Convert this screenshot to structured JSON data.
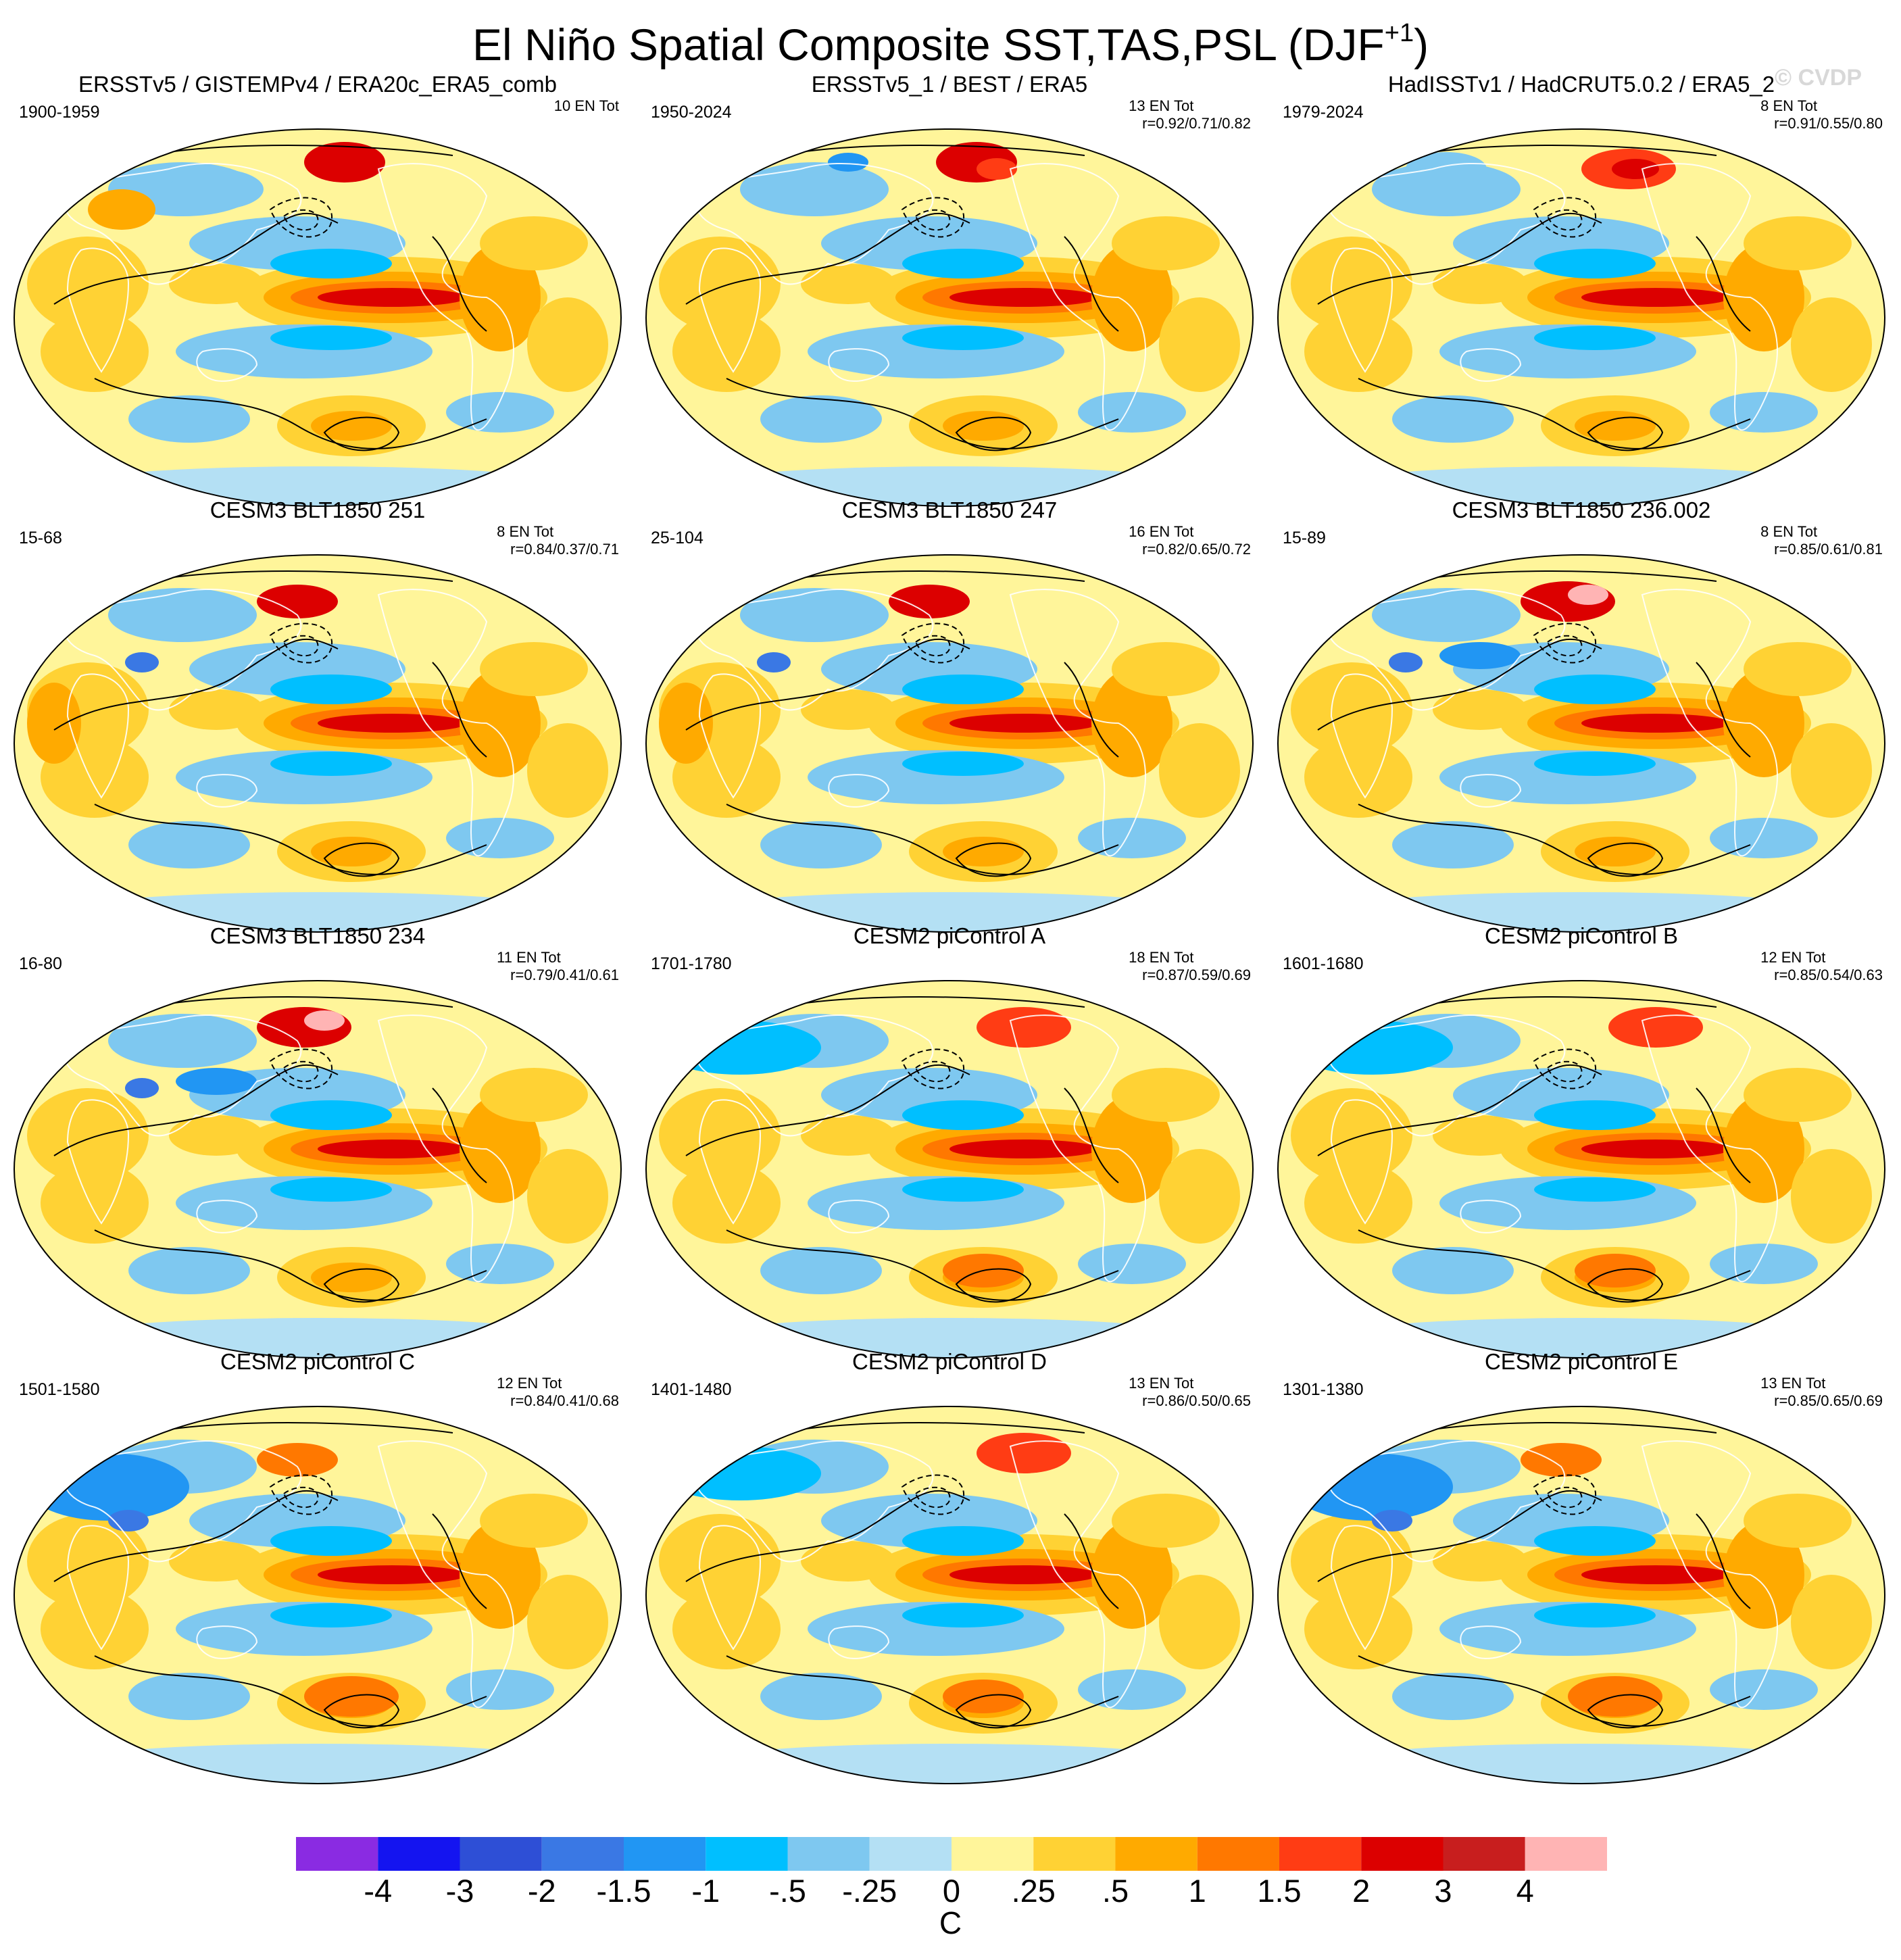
{
  "page": {
    "title_main": "El Niño Spatial Composite SST,TAS,PSL (DJF",
    "title_sup": "+1",
    "title_close": ")",
    "copyright": "© CVDP"
  },
  "chart_data": {
    "type": "heatmap",
    "description_type": "composite-map-grid",
    "units": "C",
    "colorbar": {
      "ticks": [
        "-4",
        "-3",
        "-2",
        "-1.5",
        "-1",
        "-.5",
        "-.25",
        "0",
        ".25",
        ".5",
        "1",
        "1.5",
        "2",
        "3",
        "4"
      ],
      "colors": [
        "#8a2be2",
        "#1414f0",
        "#2e4fd6",
        "#3a78e4",
        "#2196f3",
        "#00bfff",
        "#7ec8f0",
        "#b4e0f4",
        "#fff59a",
        "#ffd234",
        "#ffaa00",
        "#ff7800",
        "#ff3c14",
        "#dc0000",
        "#c81e1e",
        "#ffb4b4"
      ]
    },
    "panels": [
      {
        "title": "ERSSTv5 / GISTEMPv4 / ERA20c_ERA5_comb",
        "period": "1900-1959",
        "events": "10 EN Tot",
        "corr": "",
        "pattern": 0
      },
      {
        "title": "ERSSTv5_1 / BEST / ERA5",
        "period": "1950-2024",
        "events": "13 EN Tot",
        "corr": "r=0.92/0.71/0.82",
        "pattern": 1
      },
      {
        "title": "HadISSTv1 / HadCRUT5.0.2 / ERA5_2",
        "period": "1979-2024",
        "events": "8 EN Tot",
        "corr": "r=0.91/0.55/0.80",
        "pattern": 2
      },
      {
        "title": "CESM3 BLT1850 251",
        "period": "15-68",
        "events": "8 EN Tot",
        "corr": "r=0.84/0.37/0.71",
        "pattern": 3
      },
      {
        "title": "CESM3 BLT1850 247",
        "period": "25-104",
        "events": "16 EN Tot",
        "corr": "r=0.82/0.65/0.72",
        "pattern": 3
      },
      {
        "title": "CESM3 BLT1850 236.002",
        "period": "15-89",
        "events": "8 EN Tot",
        "corr": "r=0.85/0.61/0.81",
        "pattern": 4
      },
      {
        "title": "CESM3 BLT1850 234",
        "period": "16-80",
        "events": "11 EN Tot",
        "corr": "r=0.79/0.41/0.61",
        "pattern": 4
      },
      {
        "title": "CESM2 piControl A",
        "period": "1701-1780",
        "events": "18 EN Tot",
        "corr": "r=0.87/0.59/0.69",
        "pattern": 5
      },
      {
        "title": "CESM2 piControl B",
        "period": "1601-1680",
        "events": "12 EN Tot",
        "corr": "r=0.85/0.54/0.63",
        "pattern": 5
      },
      {
        "title": "CESM2 piControl C",
        "period": "1501-1580",
        "events": "12 EN Tot",
        "corr": "r=0.84/0.41/0.68",
        "pattern": 6
      },
      {
        "title": "CESM2 piControl D",
        "period": "1401-1480",
        "events": "13 EN Tot",
        "corr": "r=0.86/0.50/0.65",
        "pattern": 5
      },
      {
        "title": "CESM2 piControl E",
        "period": "1301-1380",
        "events": "13 EN Tot",
        "corr": "r=0.85/0.65/0.69",
        "pattern": 6
      }
    ]
  }
}
